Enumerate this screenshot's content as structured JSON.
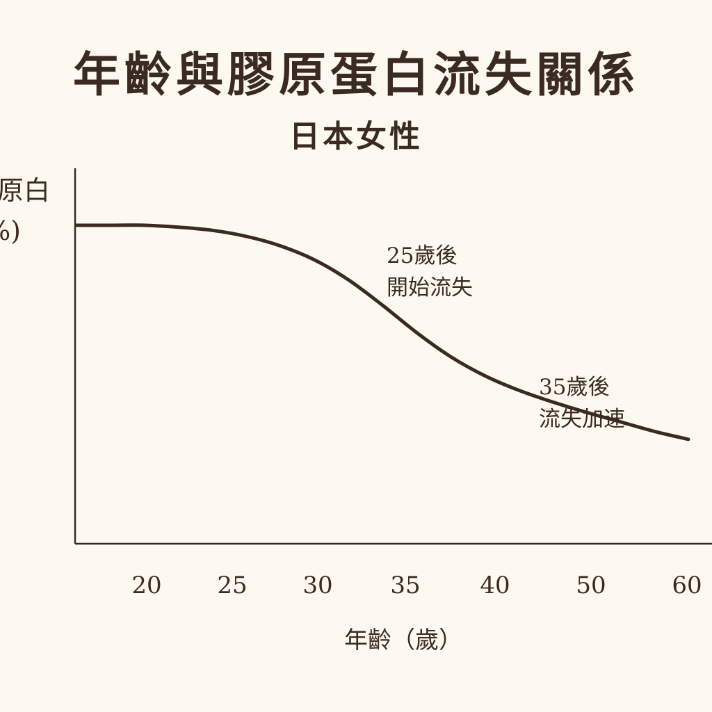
{
  "colors": {
    "background": "#fdf9f1",
    "ink": "#3a2a22",
    "line": "#3a2a22"
  },
  "chart_data": {
    "type": "line",
    "title": "年齡與膠原蛋白流失關係",
    "subtitle": "日本女性",
    "ylabel_line1": "原白",
    "ylabel_line2": "%)",
    "xlabel": "年齡（歲）",
    "x_ticks": [
      "20",
      "25",
      "30",
      "35",
      "40",
      "50",
      "60"
    ],
    "grid": false,
    "legend": "none",
    "series": [
      {
        "values": [
          100,
          100,
          100,
          99.4,
          98.4,
          96.5,
          93.5,
          89.1,
          82.8,
          74.8,
          66.2,
          58.6,
          52.6,
          48.0,
          44.3,
          41.0,
          38.0,
          35.0,
          32.5
        ]
      }
    ],
    "annotations": [
      {
        "line1": "25歲後",
        "line2": "開始流失"
      },
      {
        "line1": "35歲後",
        "line2": "流失加速"
      }
    ]
  }
}
